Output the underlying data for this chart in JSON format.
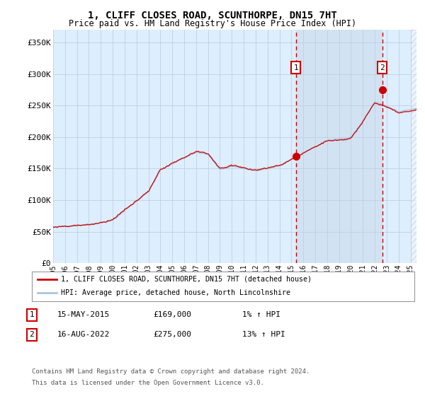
{
  "title": "1, CLIFF CLOSES ROAD, SCUNTHORPE, DN15 7HT",
  "subtitle": "Price paid vs. HM Land Registry's House Price Index (HPI)",
  "title_fontsize": 10,
  "subtitle_fontsize": 8.5,
  "hpi_color": "#aac4e0",
  "price_color": "#cc0000",
  "background_plot": "#ddeeff",
  "background_fig": "#ffffff",
  "grid_color": "#c0cfe0",
  "ylim": [
    0,
    370000
  ],
  "yticks": [
    0,
    50000,
    100000,
    150000,
    200000,
    250000,
    300000,
    350000
  ],
  "ytick_labels": [
    "£0",
    "£50K",
    "£100K",
    "£150K",
    "£200K",
    "£250K",
    "£300K",
    "£350K"
  ],
  "sale1_date": 2015.37,
  "sale1_price": 169000,
  "sale1_label": "1",
  "sale2_date": 2022.62,
  "sale2_price": 275000,
  "sale2_label": "2",
  "xmin": 1995.0,
  "xmax": 2025.5,
  "xticks": [
    1995,
    1996,
    1997,
    1998,
    1999,
    2000,
    2001,
    2002,
    2003,
    2004,
    2005,
    2006,
    2007,
    2008,
    2009,
    2010,
    2011,
    2012,
    2013,
    2014,
    2015,
    2016,
    2017,
    2018,
    2019,
    2020,
    2021,
    2022,
    2023,
    2024,
    2025
  ],
  "legend_label_red": "1, CLIFF CLOSES ROAD, SCUNTHORPE, DN15 7HT (detached house)",
  "legend_label_blue": "HPI: Average price, detached house, North Lincolnshire",
  "annot1_date": "15-MAY-2015",
  "annot1_price": "£169,000",
  "annot1_hpi": "1% ↑ HPI",
  "annot2_date": "16-AUG-2022",
  "annot2_price": "£275,000",
  "annot2_hpi": "13% ↑ HPI",
  "footnote1": "Contains HM Land Registry data © Crown copyright and database right 2024.",
  "footnote2": "This data is licensed under the Open Government Licence v3.0.",
  "shade_start": 2015.37,
  "shade_end": 2022.62
}
